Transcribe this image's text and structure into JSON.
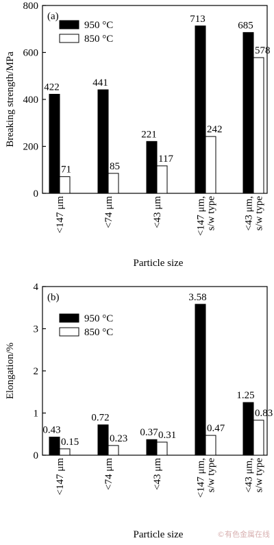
{
  "watermark": "©有色金属在线",
  "chart_data": [
    {
      "type": "bar",
      "panel_label": "(a)",
      "xlabel": "Particle size",
      "ylabel": "Breaking strength/MPa",
      "ylim": [
        0,
        800
      ],
      "yticks": [
        "0",
        "200",
        "400",
        "600",
        "800"
      ],
      "ytick_values": [
        0,
        200,
        400,
        600,
        800
      ],
      "categories": [
        [
          "<147 μm"
        ],
        [
          "<74 μm"
        ],
        [
          "<43 μm"
        ],
        [
          "<147 μm,",
          "s/w type"
        ],
        [
          "<43 μm,",
          "s/w type"
        ]
      ],
      "legend_position": "top-left",
      "series": [
        {
          "name": "950 °C",
          "color": "#000000",
          "values": [
            422,
            441,
            221,
            713,
            685
          ],
          "labels": [
            "422",
            "441",
            "221",
            "713",
            "685"
          ]
        },
        {
          "name": "850 °C",
          "color": "#ffffff",
          "values": [
            71,
            85,
            117,
            242,
            578
          ],
          "labels": [
            "71",
            "85",
            "117",
            "242",
            "578"
          ]
        }
      ]
    },
    {
      "type": "bar",
      "panel_label": "(b)",
      "xlabel": "Particle size",
      "ylabel": "Elongation/%",
      "ylim": [
        0,
        4
      ],
      "yticks": [
        "0",
        "1",
        "2",
        "3",
        "4"
      ],
      "ytick_values": [
        0,
        1,
        2,
        3,
        4
      ],
      "categories": [
        [
          "<147 μm"
        ],
        [
          "<74 μm"
        ],
        [
          "<43 μm"
        ],
        [
          "<147 μm,",
          "s/w type"
        ],
        [
          "<43 μm,",
          "s/w type"
        ]
      ],
      "legend_position": "top-left",
      "series": [
        {
          "name": "950 °C",
          "color": "#000000",
          "values": [
            0.43,
            0.72,
            0.37,
            3.58,
            1.25
          ],
          "labels": [
            "0.43",
            "0.72",
            "0.37",
            "3.58",
            "1.25"
          ]
        },
        {
          "name": "850 °C",
          "color": "#ffffff",
          "values": [
            0.15,
            0.23,
            0.31,
            0.47,
            0.83
          ],
          "labels": [
            "0.15",
            "0.23",
            "0.31",
            "0.47",
            "0.83"
          ]
        }
      ]
    }
  ]
}
